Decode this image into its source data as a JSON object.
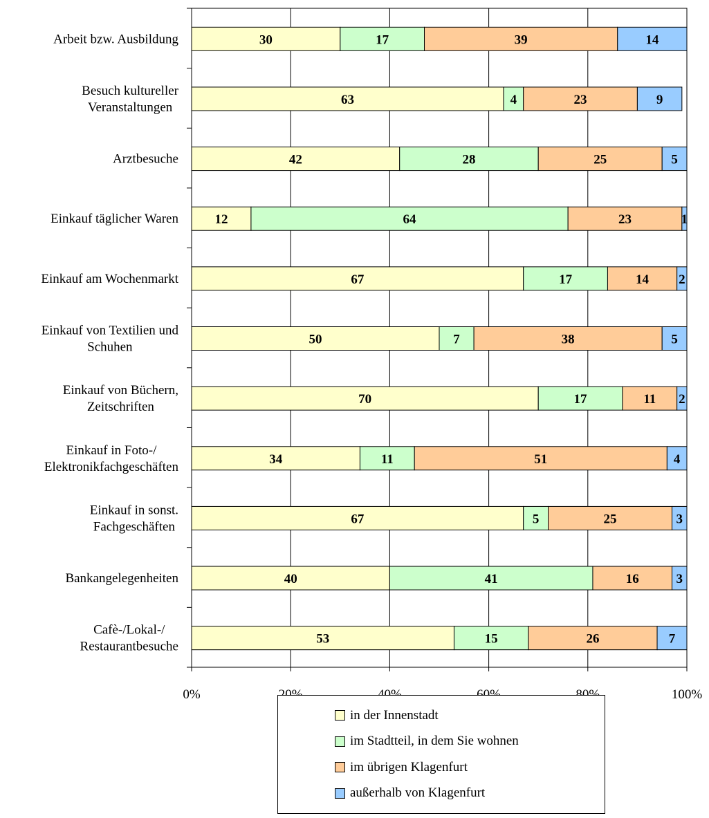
{
  "chart_data": {
    "type": "bar",
    "orientation": "horizontal",
    "stacked": "percent",
    "categories": [
      [
        "Arbeit bzw. Ausbildung"
      ],
      [
        "Besuch kultureller",
        "Veranstaltungen"
      ],
      [
        "Arztbesuche"
      ],
      [
        "Einkauf täglicher Waren"
      ],
      [
        "Einkauf am Wochenmarkt"
      ],
      [
        "Einkauf von Textilien und",
        "Schuhen"
      ],
      [
        "Einkauf von Büchern,",
        "Zeitschriften"
      ],
      [
        "Einkauf in Foto-/",
        "Elektronikfachgeschäften"
      ],
      [
        "Einkauf in sonst.",
        "Fachgeschäften"
      ],
      [
        "Bankangelegenheiten"
      ],
      [
        "Cafè-/Lokal-/",
        "Restaurantbesuche"
      ]
    ],
    "series": [
      {
        "name": "in der Innenstadt",
        "color": "#FFFFCC",
        "values": [
          30,
          63,
          42,
          12,
          67,
          50,
          70,
          34,
          67,
          40,
          53
        ]
      },
      {
        "name": "im Stadtteil, in dem Sie wohnen",
        "color": "#CCFFCC",
        "values": [
          17,
          4,
          28,
          64,
          17,
          7,
          17,
          11,
          5,
          41,
          15
        ]
      },
      {
        "name": "im übrigen Klagenfurt",
        "color": "#FFCC99",
        "values": [
          39,
          23,
          25,
          23,
          14,
          38,
          11,
          51,
          25,
          16,
          26
        ]
      },
      {
        "name": "außerhalb von Klagenfurt",
        "color": "#99CCFF",
        "values": [
          14,
          9,
          5,
          1,
          2,
          5,
          2,
          4,
          3,
          3,
          7
        ]
      }
    ],
    "xlim": [
      0,
      100
    ],
    "x_ticks": [
      "0%",
      "20%",
      "40%",
      "60%",
      "80%",
      "100%"
    ],
    "grid": "vertical",
    "legend_position": "bottom"
  }
}
